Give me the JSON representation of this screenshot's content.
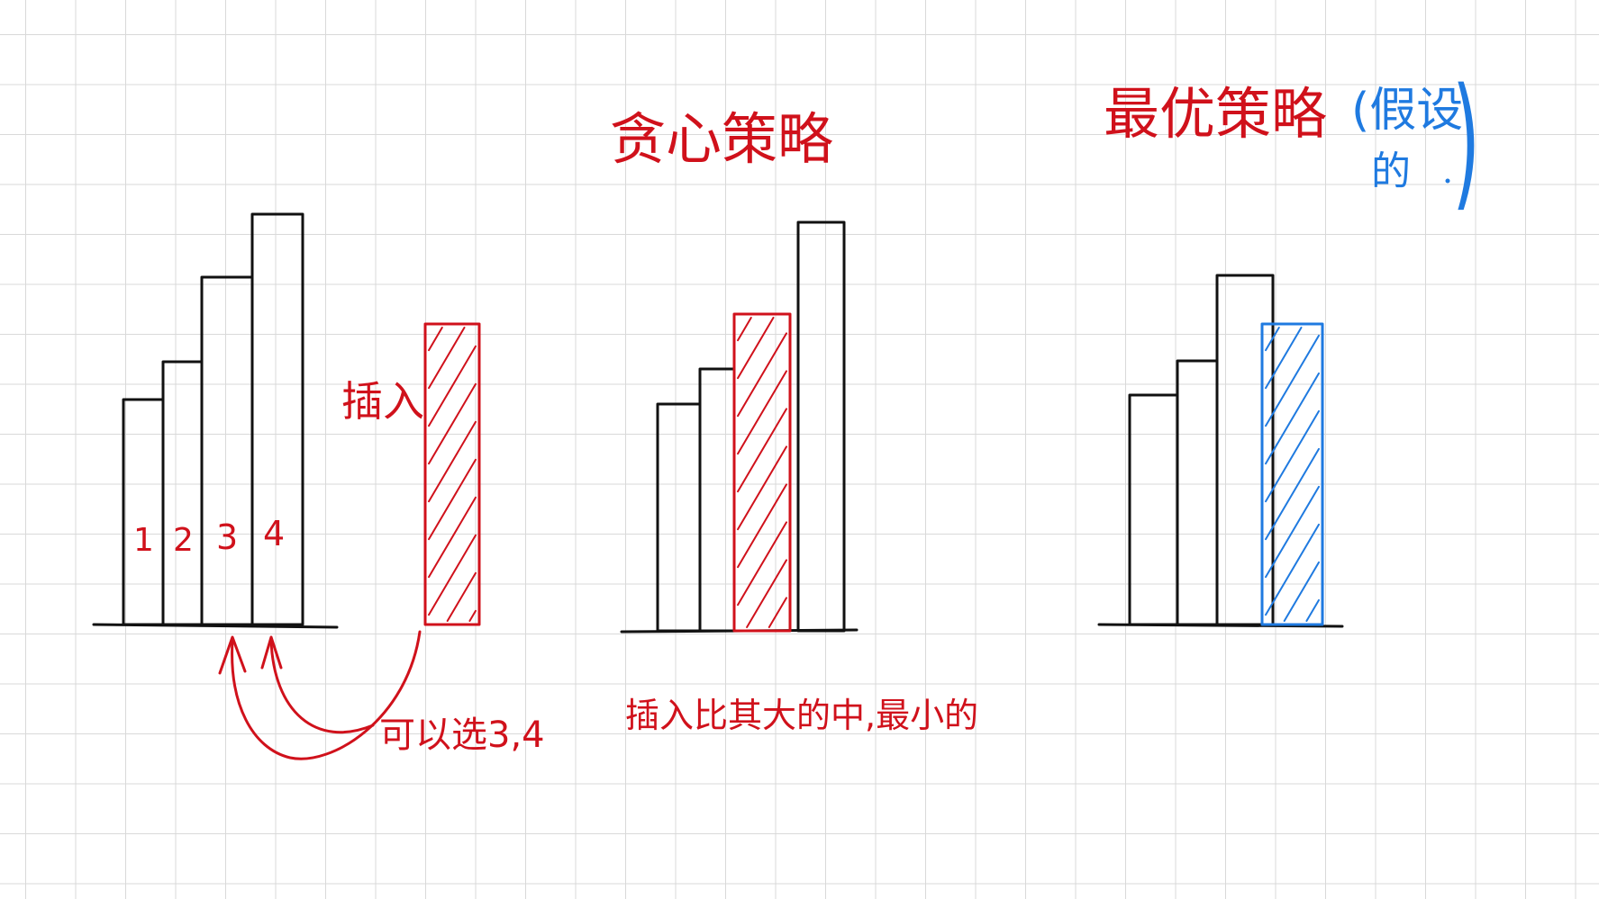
{
  "colors": {
    "red": "#d0111b",
    "blue": "#1f7ae0",
    "ink": "#111111",
    "grid": "#d9d9d9"
  },
  "example": {
    "insert_label": "插入",
    "bar_numbers": [
      "1",
      "2",
      "3",
      "4"
    ],
    "choice_note": "可以选3,4"
  },
  "greedy": {
    "title": "贪心策略",
    "note": "插入比其大的中,最小的"
  },
  "optimal": {
    "title": "最优策略",
    "aside_line1": "(假设",
    "aside_line2": "的",
    "aside_close": ")"
  }
}
